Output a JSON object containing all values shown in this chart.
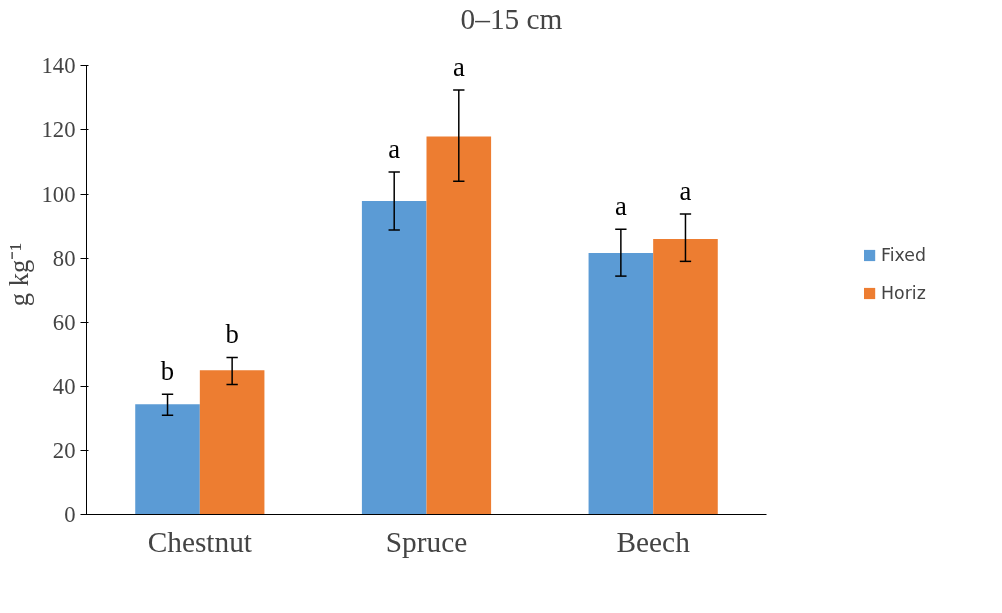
{
  "chart_data": {
    "type": "bar",
    "title": "0–15 cm",
    "ylabel": "g kg⁻¹",
    "categories": [
      "Chestnut",
      "Spruce",
      "Beech"
    ],
    "series": [
      {
        "name": "Fixed",
        "color": "#5b9bd5",
        "values": [
          34.4,
          97.8,
          81.6
        ],
        "errors": [
          [
            31,
            37.5
          ],
          [
            88.8,
            106.9
          ],
          [
            74.4,
            89
          ]
        ]
      },
      {
        "name": "Horiz",
        "color": "#ed7d31",
        "values": [
          45,
          118,
          86
        ],
        "errors": [
          [
            40.6,
            49
          ],
          [
            104,
            132.5
          ],
          [
            79,
            93.8
          ]
        ]
      }
    ],
    "ylim": [
      0,
      140
    ],
    "yticks": [
      0,
      20,
      40,
      60,
      80,
      100,
      120,
      140
    ],
    "grid": false,
    "legend": "right",
    "annotations": [
      "b",
      "b",
      "a",
      "a",
      "a",
      "a"
    ]
  }
}
